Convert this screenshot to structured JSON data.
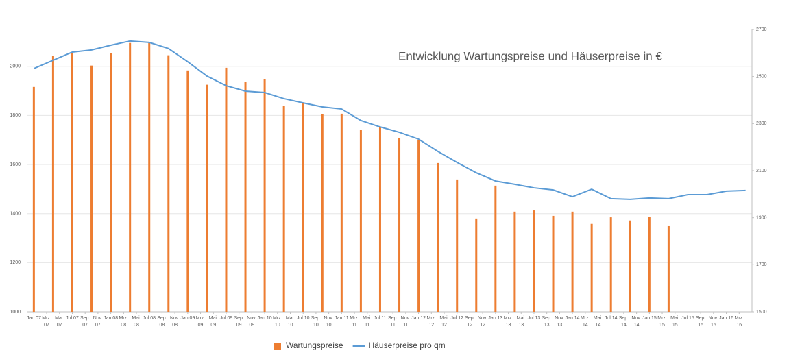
{
  "chart_data": {
    "type": "combo",
    "title": "Entwicklung Wartungspreise und Häuserpreise in €",
    "xlim": [
      -1,
      112
    ],
    "xticks": [
      {
        "value": 0,
        "label": "Jan 07"
      },
      {
        "value": 2,
        "label": "Mrz 07"
      },
      {
        "value": 4,
        "label": "Mai 07"
      },
      {
        "value": 6,
        "label": "Jul 07"
      },
      {
        "value": 8,
        "label": "Sep 07"
      },
      {
        "value": 10,
        "label": "Nov 07"
      },
      {
        "value": 12,
        "label": "Jan 08"
      },
      {
        "value": 14,
        "label": "Mrz 08"
      },
      {
        "value": 16,
        "label": "Mai 08"
      },
      {
        "value": 18,
        "label": "Jul 08"
      },
      {
        "value": 20,
        "label": "Sep 08"
      },
      {
        "value": 22,
        "label": "Nov 08"
      },
      {
        "value": 24,
        "label": "Jan 09"
      },
      {
        "value": 26,
        "label": "Mrz 09"
      },
      {
        "value": 28,
        "label": "Mai 09"
      },
      {
        "value": 30,
        "label": "Jul 09"
      },
      {
        "value": 32,
        "label": "Sep 09"
      },
      {
        "value": 34,
        "label": "Nov 09"
      },
      {
        "value": 36,
        "label": "Jan 10"
      },
      {
        "value": 38,
        "label": "Mrz 10"
      },
      {
        "value": 40,
        "label": "Mai 10"
      },
      {
        "value": 42,
        "label": "Jul 10"
      },
      {
        "value": 44,
        "label": "Sep 10"
      },
      {
        "value": 46,
        "label": "Nov 10"
      },
      {
        "value": 48,
        "label": "Jan 11"
      },
      {
        "value": 50,
        "label": "Mrz 11"
      },
      {
        "value": 52,
        "label": "Mai 11"
      },
      {
        "value": 54,
        "label": "Jul 11"
      },
      {
        "value": 56,
        "label": "Sep 11"
      },
      {
        "value": 58,
        "label": "Nov 11"
      },
      {
        "value": 60,
        "label": "Jan 12"
      },
      {
        "value": 62,
        "label": "Mrz 12"
      },
      {
        "value": 64,
        "label": "Mai 12"
      },
      {
        "value": 66,
        "label": "Jul 12"
      },
      {
        "value": 68,
        "label": "Sep 12"
      },
      {
        "value": 70,
        "label": "Nov 12"
      },
      {
        "value": 72,
        "label": "Jan 13"
      },
      {
        "value": 74,
        "label": "Mrz 13"
      },
      {
        "value": 76,
        "label": "Mai 13"
      },
      {
        "value": 78,
        "label": "Jul 13"
      },
      {
        "value": 80,
        "label": "Sep 13"
      },
      {
        "value": 82,
        "label": "Nov 13"
      },
      {
        "value": 84,
        "label": "Jan 14"
      },
      {
        "value": 86,
        "label": "Mrz 14"
      },
      {
        "value": 88,
        "label": "Mai 14"
      },
      {
        "value": 90,
        "label": "Jul 14"
      },
      {
        "value": 92,
        "label": "Sep 14"
      },
      {
        "value": 94,
        "label": "Nov 14"
      },
      {
        "value": 96,
        "label": "Jan 15"
      },
      {
        "value": 98,
        "label": "Mrz 15"
      },
      {
        "value": 100,
        "label": "Mai 15"
      },
      {
        "value": 102,
        "label": "Jul 15"
      },
      {
        "value": 104,
        "label": "Sep 15"
      },
      {
        "value": 106,
        "label": "Nov 15"
      },
      {
        "value": 108,
        "label": "Jan 16"
      },
      {
        "value": 110,
        "label": "Mrz 16"
      }
    ],
    "ylim": [
      1000,
      2150
    ],
    "yticks": [
      1000,
      1200,
      1400,
      1600,
      1800,
      2000
    ],
    "y2lim": [
      1500,
      2700
    ],
    "y2ticks": [
      1500,
      1700,
      1900,
      2100,
      2300,
      2500,
      2700
    ],
    "grid": true,
    "legend": "bottom",
    "series": [
      {
        "name": "Wartungspreise",
        "type": "bar",
        "color": "#ed7d31",
        "x": [
          0,
          3,
          6,
          9,
          12,
          15,
          18,
          21,
          24,
          27,
          30,
          33,
          36,
          39,
          42,
          45,
          48,
          51,
          54,
          57,
          60,
          63,
          66,
          69,
          72,
          75,
          78,
          81,
          84,
          87,
          90,
          93,
          96,
          99
        ],
        "values": [
          1916,
          2042,
          2056,
          2003,
          2053,
          2095,
          2095,
          2045,
          1983,
          1925,
          1994,
          1936,
          1947,
          1838,
          1852,
          1804,
          1807,
          1740,
          1754,
          1709,
          1701,
          1606,
          1539,
          1380,
          1514,
          1408,
          1413,
          1391,
          1408,
          1358,
          1385,
          1372,
          1388,
          1349
        ]
      },
      {
        "name": "Häuserpreise pro qm",
        "type": "line",
        "axis": "y2",
        "color": "#5b9bd5",
        "x": [
          0,
          3,
          6,
          9,
          12,
          15,
          18,
          21,
          24,
          27,
          30,
          33,
          36,
          39,
          42,
          45,
          48,
          51,
          54,
          57,
          60,
          63,
          66,
          69,
          72,
          75,
          78,
          81,
          84,
          87,
          90,
          93,
          96,
          99,
          102,
          105,
          108,
          111
        ],
        "values": [
          2534,
          2569,
          2604,
          2613,
          2633,
          2651,
          2645,
          2619,
          2563,
          2502,
          2461,
          2438,
          2432,
          2406,
          2388,
          2371,
          2362,
          2313,
          2286,
          2263,
          2234,
          2182,
          2135,
          2091,
          2056,
          2042,
          2027,
          2018,
          1989,
          2021,
          1981,
          1978,
          1984,
          1981,
          1998,
          1998,
          2013,
          2016
        ]
      }
    ]
  }
}
